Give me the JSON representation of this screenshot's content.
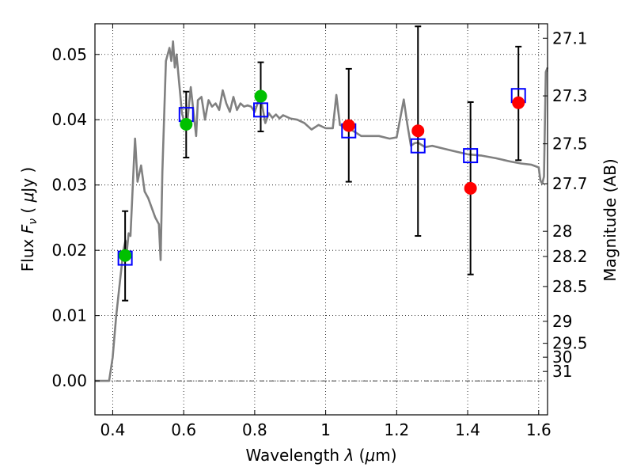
{
  "chart_data": {
    "type": "scatter",
    "xlabel": "Wavelength  λ (μm)",
    "ylabel": "Flux  F_ν  ( μJy )",
    "ylabel_parts": {
      "a": "Flux ",
      "b": "F",
      "c": "ν",
      "d": " ( ",
      "e": "μ",
      "f": "Jy )"
    },
    "xlabel_parts": {
      "a": "Wavelength ",
      "b": "λ",
      "c": " (",
      "d": "μ",
      "e": "m)"
    },
    "y2label": "Magnitude (AB)",
    "xlim": [
      0.35,
      1.625
    ],
    "ylim": [
      -0.0052,
      0.0547
    ],
    "grid": true,
    "x_ticks": [
      {
        "value": 0.4,
        "label": "0.4"
      },
      {
        "value": 0.6,
        "label": "0.6"
      },
      {
        "value": 0.8,
        "label": "0.8"
      },
      {
        "value": 1.0,
        "label": "1"
      },
      {
        "value": 1.2,
        "label": "1.2"
      },
      {
        "value": 1.4,
        "label": "1.4"
      },
      {
        "value": 1.6,
        "label": "1.6"
      }
    ],
    "y_ticks": [
      {
        "value": 0.0,
        "label": "0.00"
      },
      {
        "value": 0.01,
        "label": "0.01"
      },
      {
        "value": 0.02,
        "label": "0.02"
      },
      {
        "value": 0.03,
        "label": "0.03"
      },
      {
        "value": 0.04,
        "label": "0.04"
      },
      {
        "value": 0.05,
        "label": "0.05"
      }
    ],
    "mag_ticks": [
      {
        "label": "27.1"
      },
      {
        "label": "27.3"
      },
      {
        "label": "27.5"
      },
      {
        "label": "27.7"
      },
      {
        "label": "28"
      },
      {
        "label": "28.2"
      },
      {
        "label": "28.5"
      },
      {
        "label": "29"
      },
      {
        "label": "29.5"
      },
      {
        "label": "30"
      },
      {
        "label": "31"
      }
    ],
    "series": [
      {
        "kind": "model_sed",
        "color": "#808080",
        "x": [
          0.35,
          0.39,
          0.4,
          0.41,
          0.42,
          0.43,
          0.436,
          0.44,
          0.445,
          0.45,
          0.455,
          0.46,
          0.463,
          0.47,
          0.48,
          0.49,
          0.5,
          0.52,
          0.53,
          0.535,
          0.54,
          0.55,
          0.56,
          0.565,
          0.57,
          0.575,
          0.58,
          0.585,
          0.59,
          0.595,
          0.6,
          0.61,
          0.62,
          0.63,
          0.635,
          0.64,
          0.65,
          0.66,
          0.67,
          0.68,
          0.69,
          0.7,
          0.71,
          0.72,
          0.73,
          0.74,
          0.75,
          0.76,
          0.77,
          0.78,
          0.79,
          0.8,
          0.81,
          0.82,
          0.83,
          0.84,
          0.85,
          0.86,
          0.87,
          0.88,
          0.9,
          0.92,
          0.94,
          0.96,
          0.98,
          1.0,
          1.02,
          1.03,
          1.04,
          1.06,
          1.08,
          1.1,
          1.12,
          1.15,
          1.18,
          1.2,
          1.22,
          1.23,
          1.24,
          1.25,
          1.26,
          1.28,
          1.3,
          1.33,
          1.36,
          1.4,
          1.44,
          1.48,
          1.52,
          1.55,
          1.58,
          1.595,
          1.6,
          1.605,
          1.61,
          1.615,
          1.62,
          1.625
        ],
        "y": [
          0.0,
          0.0,
          0.0036,
          0.01,
          0.015,
          0.02,
          0.0215,
          0.02,
          0.0226,
          0.0222,
          0.028,
          0.0338,
          0.0371,
          0.0305,
          0.033,
          0.029,
          0.028,
          0.025,
          0.024,
          0.0185,
          0.032,
          0.049,
          0.051,
          0.049,
          0.052,
          0.048,
          0.05,
          0.047,
          0.044,
          0.041,
          0.04,
          0.0395,
          0.045,
          0.04,
          0.0375,
          0.043,
          0.0435,
          0.04,
          0.043,
          0.042,
          0.0425,
          0.0415,
          0.0445,
          0.0425,
          0.0412,
          0.0435,
          0.0415,
          0.0425,
          0.042,
          0.0422,
          0.042,
          0.0412,
          0.0428,
          0.0425,
          0.0395,
          0.041,
          0.0403,
          0.0408,
          0.0402,
          0.0407,
          0.0402,
          0.04,
          0.0395,
          0.0385,
          0.0392,
          0.0387,
          0.0387,
          0.0438,
          0.0392,
          0.0388,
          0.0382,
          0.0375,
          0.0375,
          0.0375,
          0.0371,
          0.0373,
          0.0431,
          0.0393,
          0.036,
          0.0364,
          0.0365,
          0.0358,
          0.036,
          0.0356,
          0.0352,
          0.0347,
          0.0345,
          0.0341,
          0.0336,
          0.0333,
          0.0331,
          0.0328,
          0.0327,
          0.0307,
          0.0302,
          0.0313,
          0.0473,
          0.048
        ]
      },
      {
        "kind": "model_bandpass",
        "marker": "open-square",
        "color": "#0000ff",
        "x": [
          0.435,
          0.607,
          0.817,
          1.065,
          1.26,
          1.408,
          1.543
        ],
        "y": [
          0.0188,
          0.0408,
          0.0415,
          0.0383,
          0.036,
          0.0345,
          0.0437
        ]
      },
      {
        "kind": "observed_green",
        "marker": "filled-circle",
        "color": "#00c000",
        "x": [
          0.435,
          0.607,
          0.817
        ],
        "y": [
          0.0192,
          0.0393,
          0.0436
        ],
        "yerr_low": [
          0.0123,
          0.0342,
          0.0382
        ],
        "yerr_high": [
          0.026,
          0.0443,
          0.0488
        ]
      },
      {
        "kind": "observed_red",
        "marker": "filled-circle",
        "color": "#ff0000",
        "x": [
          1.065,
          1.26,
          1.408,
          1.543
        ],
        "y": [
          0.0391,
          0.0383,
          0.0295,
          0.0426
        ],
        "yerr_low": [
          0.0305,
          0.0222,
          0.0163,
          0.0338
        ],
        "yerr_high": [
          0.0478,
          0.0543,
          0.0427,
          0.0512
        ]
      }
    ]
  }
}
